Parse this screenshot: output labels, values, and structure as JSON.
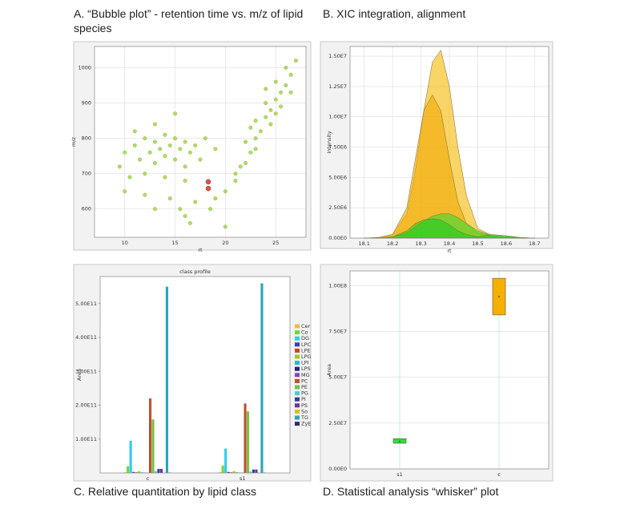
{
  "chart_data": [
    {
      "type": "scatter",
      "caption": "A. “Bubble plot” - retention time vs. m/z of lipid species",
      "xlabel": "rt",
      "ylabel": "m/z",
      "xlim": [
        7,
        28
      ],
      "ylim": [
        520,
        1060
      ],
      "xticks": [
        10,
        15,
        20,
        25
      ],
      "yticks": [
        600,
        700,
        800,
        900,
        1000
      ],
      "grid": true,
      "series": [
        {
          "color": "#a6d94a",
          "x": [
            9.5,
            10,
            10.5,
            11,
            11.5,
            12,
            12.5,
            12,
            13,
            13.5,
            13,
            14,
            14.5,
            14,
            15,
            15.5,
            15,
            16,
            16.5,
            16,
            17,
            17.5,
            11,
            13,
            15,
            14,
            16,
            10,
            12,
            18,
            19,
            14.5,
            15.5,
            16,
            17,
            18.5,
            19,
            20,
            21,
            16.5,
            13,
            21,
            21.5,
            22,
            22.5,
            22,
            23,
            23.5,
            23,
            24,
            24.5,
            24,
            25,
            25.5,
            25,
            26,
            26.5,
            26,
            27,
            22.5,
            24,
            25,
            23,
            24.5,
            25.5,
            26.5,
            20
          ],
          "y": [
            720,
            760,
            690,
            780,
            740,
            800,
            760,
            700,
            790,
            770,
            730,
            810,
            780,
            750,
            800,
            770,
            740,
            790,
            760,
            720,
            780,
            740,
            820,
            840,
            870,
            690,
            680,
            650,
            640,
            800,
            770,
            630,
            600,
            580,
            620,
            600,
            630,
            650,
            680,
            560,
            600,
            700,
            720,
            730,
            760,
            790,
            800,
            820,
            850,
            860,
            880,
            900,
            910,
            930,
            870,
            950,
            980,
            1000,
            1020,
            830,
            940,
            960,
            770,
            840,
            890,
            930,
            550
          ]
        },
        {
          "color": "#d23a2a",
          "x": [
            18.3,
            18.3
          ],
          "y": [
            677,
            658
          ]
        }
      ]
    },
    {
      "type": "area",
      "caption": "B. XIC integration, alignment",
      "xlabel": "rt",
      "ylabel": "Intensity",
      "xlim": [
        18.05,
        18.75
      ],
      "ylim": [
        0,
        15800000
      ],
      "xticks": [
        18.1,
        18.2,
        18.3,
        18.4,
        18.5,
        18.6,
        18.7
      ],
      "yticks": [
        {
          "value": 0,
          "label": "0.00E0"
        },
        {
          "value": 2500000,
          "label": "2.50E6"
        },
        {
          "value": 5000000,
          "label": "5.00E6"
        },
        {
          "value": 7500000,
          "label": "7.50E6"
        },
        {
          "value": 10000000,
          "label": "1.00E7"
        },
        {
          "value": 12500000,
          "label": "1.25E7"
        },
        {
          "value": 15000000,
          "label": "1.50E7"
        }
      ],
      "grid": true,
      "x": [
        18.1,
        18.15,
        18.2,
        18.25,
        18.28,
        18.31,
        18.34,
        18.37,
        18.4,
        18.43,
        18.46,
        18.5,
        18.55,
        18.6,
        18.65,
        18.7
      ],
      "series": [
        {
          "color": "#f5b800",
          "values": [
            0,
            50000,
            300000,
            2000000,
            5500000,
            10500000,
            14500000,
            15500000,
            12500000,
            7500000,
            3500000,
            800000,
            200000,
            100000,
            50000,
            0
          ]
        },
        {
          "color": "#f0a800",
          "values": [
            0,
            50000,
            300000,
            2500000,
            6500000,
            10500000,
            11800000,
            10500000,
            6500000,
            3000000,
            1200000,
            400000,
            200000,
            100000,
            0,
            0
          ]
        },
        {
          "color": "#33dd33",
          "values": [
            0,
            0,
            100000,
            400000,
            900000,
            1400000,
            1800000,
            2000000,
            2000000,
            1700000,
            1200000,
            600000,
            200000,
            100000,
            0,
            0
          ]
        },
        {
          "color": "#22c822",
          "values": [
            0,
            0,
            100000,
            600000,
            1200000,
            1500000,
            1600000,
            1500000,
            1100000,
            600000,
            300000,
            100000,
            300000,
            200000,
            50000,
            0
          ]
        }
      ]
    },
    {
      "type": "bar",
      "caption": "C. Relative quantitation by lipid class",
      "title": "class profile",
      "ylabel": "Area",
      "ylim": [
        0,
        580000000000
      ],
      "yticks": [
        {
          "value": 100000000000,
          "label": "1.00E11"
        },
        {
          "value": 200000000000,
          "label": "2.00E11"
        },
        {
          "value": 300000000000,
          "label": "3.00E11"
        },
        {
          "value": 400000000000,
          "label": "4.00E11"
        },
        {
          "value": 500000000000,
          "label": "5.00E11"
        }
      ],
      "categories": [
        "c",
        "s1"
      ],
      "series": [
        {
          "name": "Cer",
          "color": "#f4b942",
          "values": [
            2000000000,
            2000000000
          ]
        },
        {
          "name": "Co",
          "color": "#66dd33",
          "values": [
            20000000000,
            22000000000
          ]
        },
        {
          "name": "DG",
          "color": "#33ccee",
          "values": [
            95000000000,
            72000000000
          ]
        },
        {
          "name": "LPC",
          "color": "#3344aa",
          "values": [
            3000000000,
            3000000000
          ]
        },
        {
          "name": "LPE",
          "color": "#cc4422",
          "values": [
            2000000000,
            2000000000
          ]
        },
        {
          "name": "LPG",
          "color": "#99cc22",
          "values": [
            5000000000,
            5000000000
          ]
        },
        {
          "name": "LPI",
          "color": "#22bbcc",
          "values": [
            2000000000,
            2000000000
          ]
        },
        {
          "name": "LPS",
          "color": "#222288",
          "values": [
            1000000000,
            1000000000
          ]
        },
        {
          "name": "MG",
          "color": "#8844aa",
          "values": [
            1000000000,
            1000000000
          ]
        },
        {
          "name": "PC",
          "color": "#c0502a",
          "values": [
            220000000000,
            205000000000
          ]
        },
        {
          "name": "PE",
          "color": "#7ac143",
          "values": [
            158000000000,
            182000000000
          ]
        },
        {
          "name": "PG",
          "color": "#44ccdd",
          "values": [
            5000000000,
            4000000000
          ]
        },
        {
          "name": "PI",
          "color": "#3a3a9a",
          "values": [
            12000000000,
            10000000000
          ]
        },
        {
          "name": "PS",
          "color": "#7030a0",
          "values": [
            12000000000,
            10000000000
          ]
        },
        {
          "name": "So",
          "color": "#d8c020",
          "values": [
            1000000000,
            1000000000
          ]
        },
        {
          "name": "TG",
          "color": "#2aa7b8",
          "values": [
            550000000000,
            560000000000
          ]
        },
        {
          "name": "ZyE",
          "color": "#2c2c7a",
          "values": [
            1000000000,
            1000000000
          ]
        }
      ]
    },
    {
      "type": "box",
      "caption": "D. Statistical analysis “whisker” plot",
      "ylabel": "Area",
      "ylim": [
        0,
        108000000
      ],
      "yticks": [
        {
          "value": 0,
          "label": "0.00E0"
        },
        {
          "value": 25000000,
          "label": "2.50E7"
        },
        {
          "value": 50000000,
          "label": "5.00E7"
        },
        {
          "value": 75000000,
          "label": "7.50E7"
        },
        {
          "value": 100000000,
          "label": "1.00E8"
        }
      ],
      "grid": true,
      "categories": [
        "s1",
        "c"
      ],
      "colors": [
        "#33dd33",
        "#f5b000"
      ],
      "q1": [
        14000000,
        84000000
      ],
      "median": [
        15000000,
        94000000
      ],
      "q3": [
        16500000,
        104000000
      ]
    }
  ]
}
